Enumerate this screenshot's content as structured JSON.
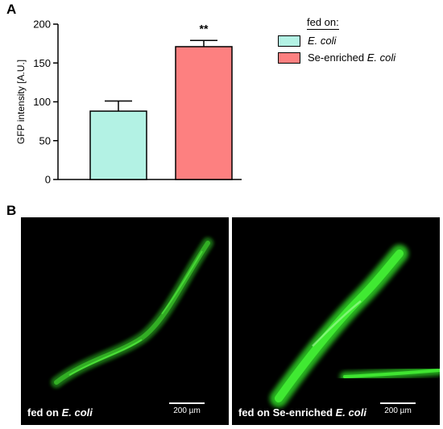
{
  "panels": {
    "a_label": "A",
    "b_label": "B"
  },
  "chart_data": {
    "type": "bar",
    "categories": [
      "E. coli",
      "Se-enriched E. coli"
    ],
    "values": [
      88,
      171
    ],
    "errors": [
      13,
      8
    ],
    "ylabel": "GFP intensity [A.U.]",
    "ylim": [
      0,
      200
    ],
    "yticks": [
      0,
      50,
      100,
      150,
      200
    ],
    "significance": {
      "category_index": 1,
      "label": "**"
    },
    "bar_colors": [
      "#b3f2e4",
      "#fd8080"
    ],
    "grid": false,
    "legend": {
      "position": "top-right",
      "title": "fed on:",
      "entries": [
        {
          "italic": "E. coli",
          "plain": "",
          "color": "#b3f2e4"
        },
        {
          "plain": "Se-enriched ",
          "italic": "E. coli",
          "color": "#fd8080"
        }
      ]
    }
  },
  "micrographs": [
    {
      "caption_plain": "fed on ",
      "caption_italic": "E. coli",
      "scale_label": "200 µm",
      "glow_color": "#3cff2c"
    },
    {
      "caption_plain": "fed on Se-enriched ",
      "caption_italic": "E. coli",
      "scale_label": "200 µm",
      "glow_color": "#3cff2c"
    }
  ]
}
